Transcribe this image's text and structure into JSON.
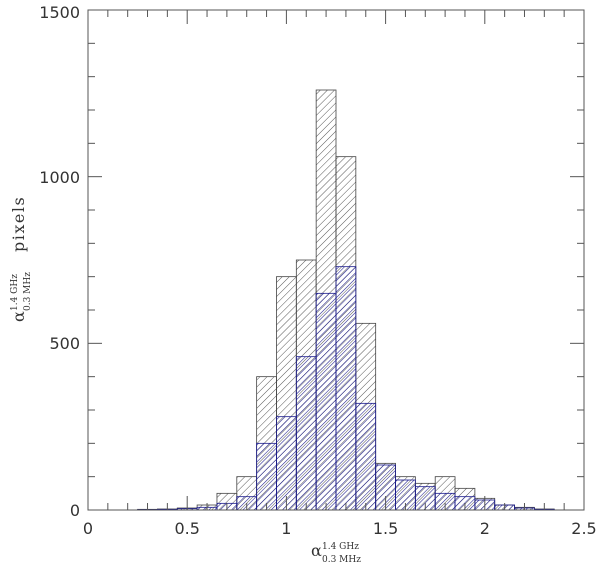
{
  "chart_data": {
    "type": "histogram",
    "x_ticks": [
      "0",
      "0.5",
      "1",
      "1.5",
      "2",
      "2.5"
    ],
    "y_ticks": [
      "0",
      "500",
      "1000",
      "1500"
    ],
    "xlim": [
      0,
      2.5
    ],
    "ylim": [
      0,
      1500
    ],
    "xlabel": {
      "symbol": "α",
      "sup": "1.4 GHz",
      "sub": "0.3 MHz"
    },
    "ylabel": {
      "symbol": "α",
      "sup": "1.4 GHz",
      "sub": "0.3 MHz",
      "suffix": "pixels"
    },
    "bin_width": 0.1,
    "series": [
      {
        "hatch": "black",
        "color": "#444444",
        "bin_starts": [
          0.25,
          0.35,
          0.45,
          0.55,
          0.65,
          0.75,
          0.85,
          0.95,
          1.05,
          1.15,
          1.25,
          1.35,
          1.45,
          1.55,
          1.65,
          1.75,
          1.85,
          1.95,
          2.05,
          2.15,
          2.25
        ],
        "values": [
          2,
          3,
          6,
          15,
          50,
          100,
          400,
          700,
          750,
          1260,
          1060,
          560,
          140,
          100,
          80,
          100,
          65,
          35,
          15,
          8,
          3
        ]
      },
      {
        "hatch": "blue",
        "color": "#1a1a8c",
        "bin_starts": [
          0.25,
          0.35,
          0.45,
          0.55,
          0.65,
          0.75,
          0.85,
          0.95,
          1.05,
          1.15,
          1.25,
          1.35,
          1.45,
          1.55,
          1.65,
          1.75,
          1.85,
          1.95,
          2.05,
          2.15,
          2.25
        ],
        "values": [
          1,
          2,
          4,
          8,
          20,
          40,
          200,
          280,
          460,
          650,
          730,
          320,
          135,
          90,
          70,
          50,
          40,
          30,
          15,
          6,
          2
        ]
      }
    ]
  }
}
